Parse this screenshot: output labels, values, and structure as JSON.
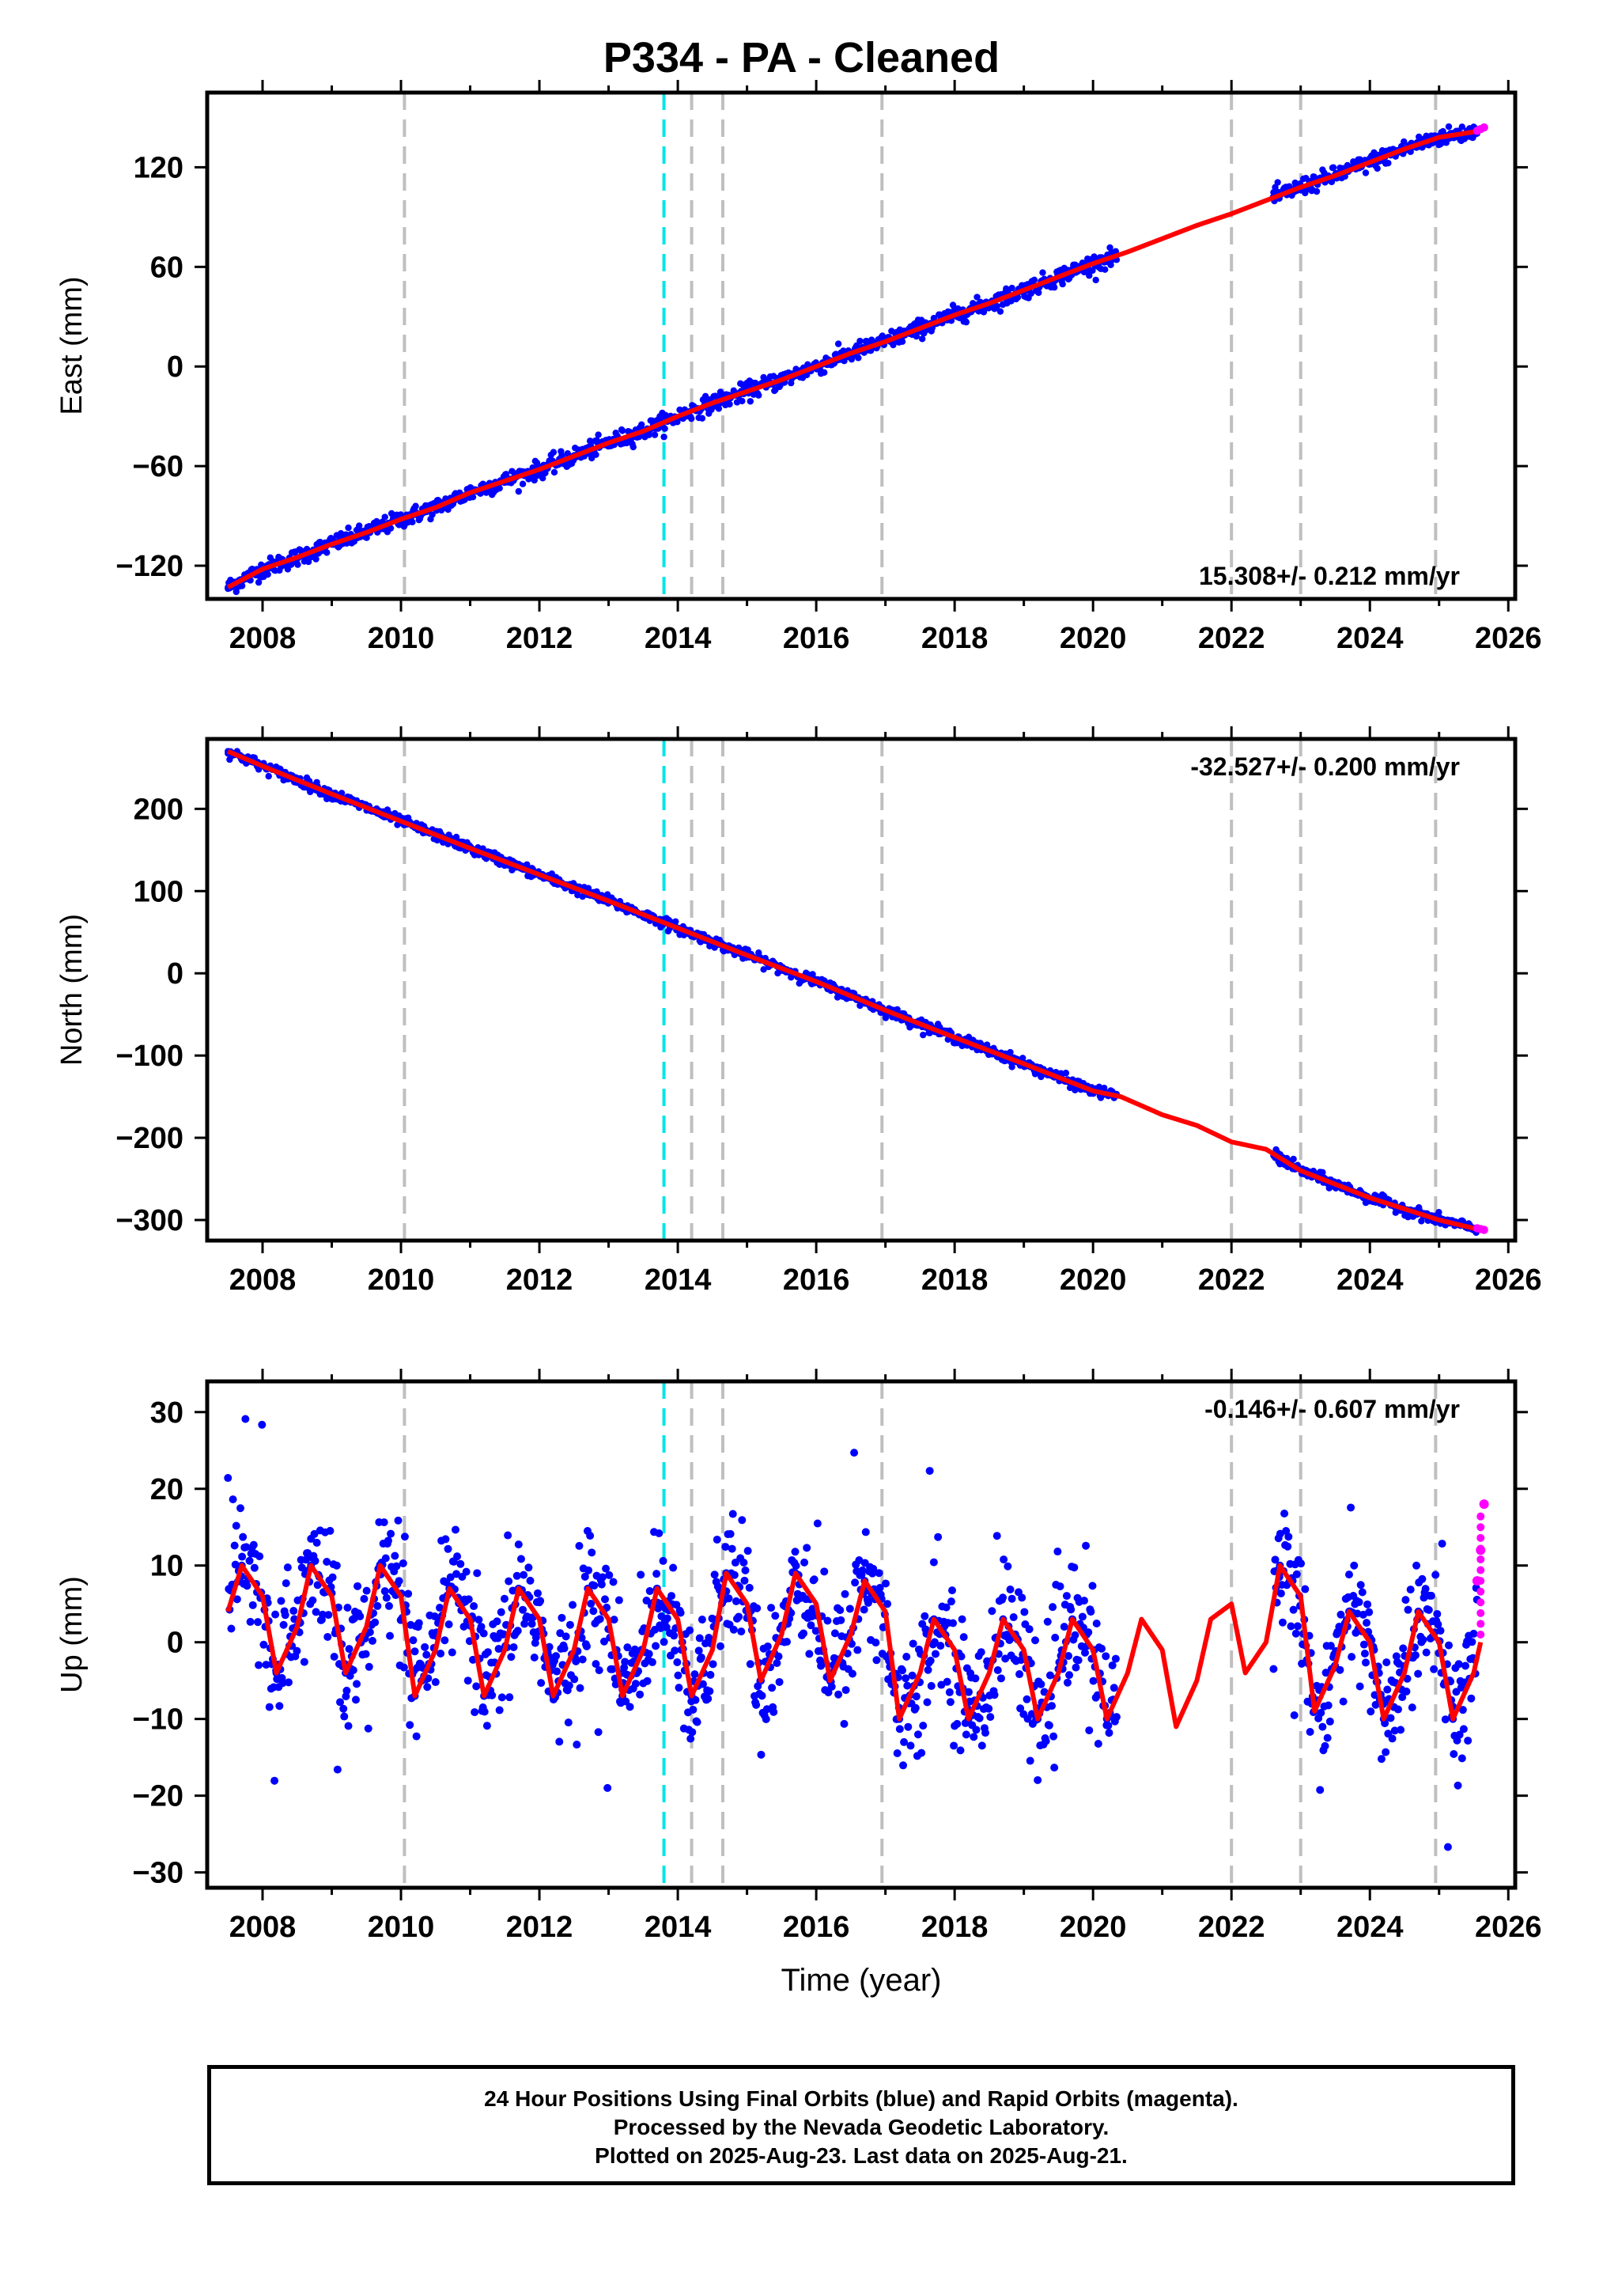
{
  "title": "P334  - PA - Cleaned",
  "caption": {
    "line1": "24 Hour Positions Using Final Orbits (blue) and Rapid Orbits (magenta).",
    "line2": "Processed by the Nevada Geodetic Laboratory.",
    "line3": "Plotted on 2025-Aug-23. Last data on 2025-Aug-21."
  },
  "colors": {
    "final": "#0000ff",
    "rapid": "#ff00ff",
    "model": "#ff0000",
    "offset_gray": "#bfbfbf",
    "offset_cyan": "#00e5e5"
  },
  "x_ticks": [
    "2008",
    "2010",
    "2012",
    "2014",
    "2016",
    "2018",
    "2020",
    "2022",
    "2024",
    "2026"
  ],
  "offsets": {
    "gray": [
      2010.05,
      2014.2,
      2014.65,
      2016.95,
      2022.0,
      2023.0,
      2024.95
    ],
    "cyan": [
      2013.8
    ]
  },
  "chart_data": [
    {
      "type": "scatter",
      "panel": "east",
      "ylabel": "East (mm)",
      "xlim": [
        2007.2,
        2026.1
      ],
      "ylim": [
        -140,
        165
      ],
      "yticks": [
        "-120",
        "-60",
        "0",
        "60",
        "120"
      ],
      "rate_label": "15.308+/- 0.212 mm/yr",
      "rate_position": "bottom-right",
      "series": [
        {
          "role": "model",
          "x": [
            2007.5,
            2008.0,
            2008.5,
            2009.0,
            2009.5,
            2010.0,
            2010.5,
            2011.0,
            2011.5,
            2012.0,
            2012.5,
            2013.0,
            2013.5,
            2014.0,
            2014.5,
            2015.0,
            2015.5,
            2016.0,
            2016.5,
            2017.0,
            2017.5,
            2018.0,
            2018.5,
            2019.0,
            2019.5,
            2020.0,
            2020.5,
            2021.0,
            2021.5,
            2022.0,
            2022.5,
            2023.0,
            2023.5,
            2024.0,
            2024.5,
            2025.0,
            2025.6
          ],
          "y": [
            -133,
            -122,
            -115,
            -107,
            -100,
            -92,
            -85,
            -76,
            -69,
            -62,
            -54,
            -46,
            -39,
            -30,
            -22,
            -15,
            -8,
            0,
            8,
            15,
            23,
            31,
            38,
            46,
            54,
            62,
            69,
            77,
            85,
            92,
            100,
            108,
            115,
            123,
            131,
            138,
            142
          ]
        },
        {
          "role": "final",
          "x": [
            2007.5,
            2008.5,
            2009.5,
            2010.5,
            2011.5,
            2012.5,
            2013.5,
            2014.5,
            2015.5,
            2016.5,
            2017.5,
            2018.5,
            2019.5,
            2020.3,
            2022.6,
            2023.5,
            2024.5,
            2025.5
          ],
          "y": [
            -133,
            -115,
            -100,
            -85,
            -69,
            -54,
            -39,
            -22,
            -8,
            8,
            23,
            38,
            54,
            68,
            102,
            115,
            131,
            140
          ]
        },
        {
          "role": "rapid",
          "x": [
            2025.55,
            2025.6,
            2025.65
          ],
          "y": [
            142,
            143,
            144
          ]
        }
      ]
    },
    {
      "type": "scatter",
      "panel": "north",
      "ylabel": "North (mm)",
      "xlim": [
        2007.2,
        2026.1
      ],
      "ylim": [
        -325,
        285
      ],
      "yticks": [
        "-300",
        "-200",
        "-100",
        "0",
        "100",
        "200"
      ],
      "rate_label": "-32.527+/- 0.200 mm/yr",
      "rate_position": "top-right",
      "series": [
        {
          "role": "model",
          "x": [
            2007.5,
            2008.0,
            2009.0,
            2010.0,
            2011.0,
            2012.0,
            2013.0,
            2014.0,
            2015.0,
            2016.0,
            2017.0,
            2018.0,
            2019.0,
            2020.0,
            2020.4,
            2021.0,
            2021.5,
            2022.0,
            2022.5,
            2023.0,
            2024.0,
            2025.0,
            2025.6
          ],
          "y": [
            270,
            252,
            218,
            185,
            152,
            120,
            88,
            55,
            22,
            -10,
            -45,
            -78,
            -110,
            -143,
            -150,
            -172,
            -185,
            -205,
            -214,
            -240,
            -273,
            -300,
            -312
          ]
        },
        {
          "role": "final",
          "x": [
            2007.5,
            2008.5,
            2009.5,
            2010.5,
            2011.5,
            2012.5,
            2013.5,
            2014.5,
            2015.5,
            2016.5,
            2017.5,
            2018.5,
            2019.5,
            2020.3,
            2022.7,
            2023.5,
            2024.5,
            2025.5
          ],
          "y": [
            270,
            235,
            202,
            168,
            138,
            104,
            72,
            38,
            6,
            -28,
            -62,
            -94,
            -126,
            -148,
            -232,
            -257,
            -288,
            -310
          ]
        },
        {
          "role": "rapid",
          "x": [
            2025.55,
            2025.6,
            2025.65
          ],
          "y": [
            -310,
            -311,
            -312
          ]
        }
      ]
    },
    {
      "type": "scatter",
      "panel": "up",
      "ylabel": "Up (mm)",
      "xlabel": "Time (year)",
      "xlim": [
        2007.2,
        2026.1
      ],
      "ylim": [
        -32,
        34
      ],
      "yticks": [
        "-30",
        "-20",
        "-10",
        "0",
        "10",
        "20",
        "30"
      ],
      "rate_label": "-0.146+/- 0.607 mm/yr",
      "rate_position": "top-right",
      "series": [
        {
          "role": "model",
          "x": [
            2007.5,
            2007.7,
            2008.0,
            2008.2,
            2008.5,
            2008.7,
            2009.0,
            2009.2,
            2009.5,
            2009.7,
            2010.0,
            2010.2,
            2010.5,
            2010.7,
            2011.0,
            2011.2,
            2011.5,
            2011.7,
            2012.0,
            2012.2,
            2012.5,
            2012.7,
            2013.0,
            2013.2,
            2013.5,
            2013.7,
            2014.0,
            2014.2,
            2014.5,
            2014.7,
            2015.0,
            2015.2,
            2015.5,
            2015.7,
            2016.0,
            2016.2,
            2016.5,
            2016.7,
            2017.0,
            2017.2,
            2017.5,
            2017.7,
            2018.0,
            2018.2,
            2018.5,
            2018.7,
            2019.0,
            2019.2,
            2019.5,
            2019.7,
            2020.0,
            2020.2,
            2020.5,
            2020.7,
            2021.0,
            2021.2,
            2021.5,
            2021.7,
            2022.0,
            2022.2,
            2022.5,
            2022.7,
            2023.0,
            2023.2,
            2023.5,
            2023.7,
            2024.0,
            2024.2,
            2024.5,
            2024.7,
            2025.0,
            2025.2,
            2025.5,
            2025.6
          ],
          "y": [
            4,
            10,
            6,
            -4,
            2,
            10,
            6,
            -4,
            2,
            10,
            6,
            -7,
            -1,
            7,
            3,
            -7,
            -1,
            7,
            3,
            -7,
            -1,
            7,
            3,
            -7,
            -1,
            7,
            3,
            -7,
            -1,
            9,
            5,
            -5,
            1,
            9,
            5,
            -5,
            1,
            8,
            4,
            -10,
            -4,
            3,
            -1,
            -10,
            -4,
            3,
            -1,
            -10,
            -4,
            3,
            -1,
            -10,
            -4,
            3,
            -1,
            -11,
            -5,
            3,
            5,
            -4,
            0,
            10,
            6,
            -9,
            -3,
            4,
            0,
            -10,
            -4,
            4,
            0,
            -10,
            -4,
            0
          ]
        },
        {
          "role": "final",
          "x": [
            2007.7,
            2008.2,
            2008.7,
            2009.2,
            2009.7,
            2010.2,
            2010.7,
            2011.2,
            2011.7,
            2012.2,
            2012.7,
            2013.2,
            2013.7,
            2014.2,
            2014.7,
            2015.2,
            2015.7,
            2016.2,
            2016.7,
            2017.2,
            2017.7,
            2018.2,
            2018.7,
            2019.2,
            2019.7,
            2020.2,
            2022.7,
            2023.2,
            2023.7,
            2024.2,
            2024.7,
            2025.2
          ],
          "y": [
            10,
            -4,
            10,
            -4,
            10,
            -7,
            7,
            -7,
            7,
            -7,
            7,
            -7,
            7,
            -7,
            9,
            -5,
            9,
            -5,
            8,
            -10,
            3,
            -10,
            3,
            -10,
            3,
            -10,
            10,
            -9,
            4,
            -10,
            4,
            -10
          ]
        },
        {
          "role": "rapid",
          "x": [
            2025.55,
            2025.6,
            2025.65
          ],
          "y": [
            8,
            12,
            18
          ]
        }
      ]
    }
  ]
}
